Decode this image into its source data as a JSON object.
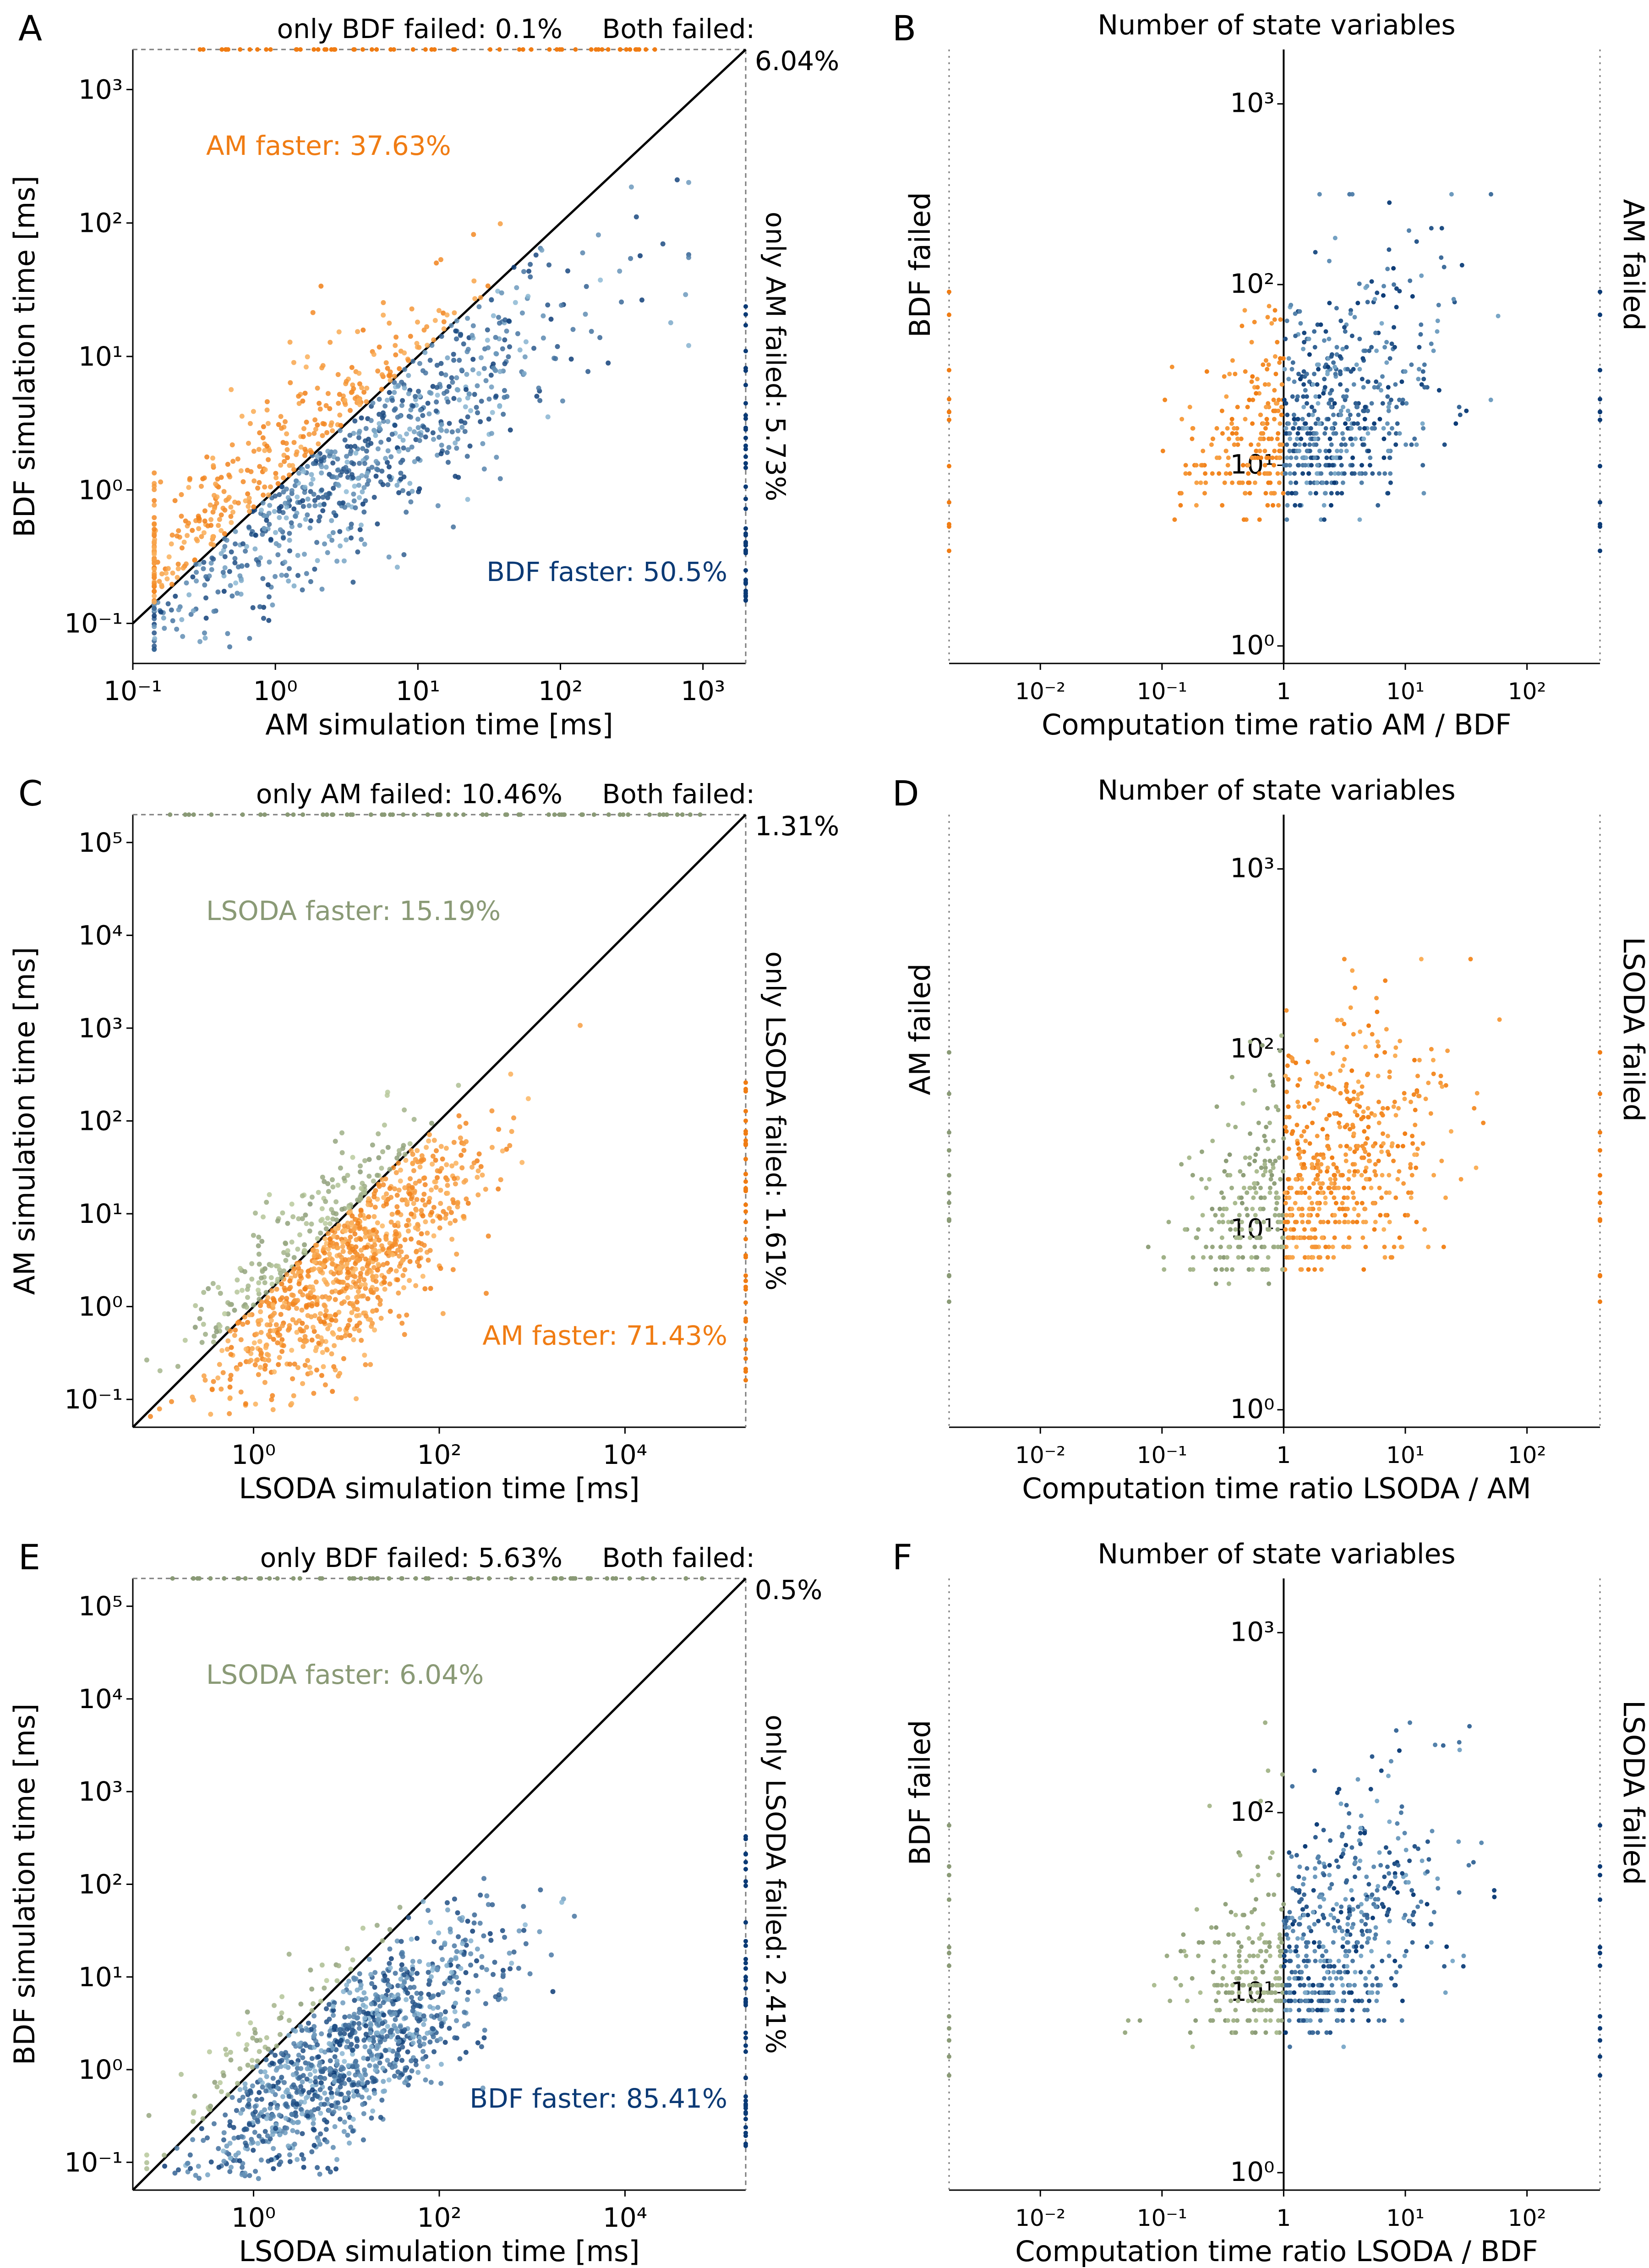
{
  "colors": {
    "am": "#f07c13",
    "am_light": "#fdbf6f",
    "bdf": "#0b3a75",
    "bdf_light": "#9ecae1",
    "lsoda": "#8a9a76",
    "lsoda_light": "#c7d8a8",
    "failed": "#7d7d7d"
  },
  "chart_data": [
    {
      "panel": "A",
      "type": "scatter",
      "xlabel": "AM simulation time [ms]",
      "ylabel": "BDF simulation time [ms]",
      "xscale": "log",
      "yscale": "log",
      "xlim": [
        0.05,
        2000
      ],
      "ylim": [
        0.05,
        2000
      ],
      "xticks": [
        "10⁻¹",
        "10⁰",
        "10¹",
        "10²",
        "10³"
      ],
      "yticks": [
        "10⁻¹",
        "10⁰",
        "10¹",
        "10²",
        "10³"
      ],
      "annotations": {
        "top": "only BDF failed: 0.1%",
        "both": [
          "Both failed:",
          "6.04%"
        ],
        "right": "only AM failed: 5.73%",
        "upper": "AM faster: 37.63%",
        "lower": "BDF faster: 50.5%"
      },
      "upper_color": "am",
      "lower_color": "bdf",
      "center": [
        0.0,
        0.0
      ],
      "spread": [
        0.75,
        0.4
      ],
      "slope": 0.72,
      "n_pts": 1100,
      "x_right_fail": 3.3
    },
    {
      "panel": "B",
      "type": "scatter",
      "title": "Number of state variables",
      "xlabel": "Computation time ratio AM / BDF",
      "left_label": "BDF failed",
      "right_label": "AM failed",
      "xscale": "log",
      "yscale": "log",
      "ylim": [
        0.8,
        2000
      ],
      "xticks": [
        "10⁻²",
        "10⁻¹",
        "1",
        "10¹",
        "10²"
      ],
      "yticks": [
        "10⁰",
        "10¹",
        "10²",
        "10³"
      ],
      "left_color": "am",
      "right_color": "bdf"
    },
    {
      "panel": "C",
      "type": "scatter",
      "xlabel": "LSODA simulation time [ms]",
      "ylabel": "AM simulation time [ms]",
      "xscale": "log",
      "yscale": "log",
      "xlim": [
        0.05,
        200000
      ],
      "ylim": [
        0.05,
        200000
      ],
      "xticks": [
        "10⁰",
        "10²",
        "10⁴"
      ],
      "yticks": [
        "10⁻¹",
        "10⁰",
        "10¹",
        "10²",
        "10³",
        "10⁴",
        "10⁵"
      ],
      "annotations": {
        "top": "only AM failed: 10.46%",
        "both": [
          "Both failed:",
          "1.31%"
        ],
        "right": "only LSODA failed: 1.61%",
        "upper": "LSODA faster: 15.19%",
        "lower": "AM faster: 71.43%"
      },
      "upper_color": "lsoda",
      "lower_color": "am",
      "center": [
        0.55,
        0.25
      ],
      "spread": [
        0.65,
        0.5
      ],
      "slope": 0.72,
      "n_pts": 1100,
      "x_right_fail": 5.3
    },
    {
      "panel": "D",
      "type": "scatter",
      "title": "Number of state variables",
      "xlabel": "Computation time ratio LSODA / AM",
      "left_label": "AM failed",
      "right_label": "LSODA failed",
      "xscale": "log",
      "yscale": "log",
      "ylim": [
        0.8,
        2000
      ],
      "xticks": [
        "10⁻²",
        "10⁻¹",
        "1",
        "10¹",
        "10²"
      ],
      "yticks": [
        "10⁰",
        "10¹",
        "10²",
        "10³"
      ],
      "left_color": "lsoda",
      "right_color": "am"
    },
    {
      "panel": "E",
      "type": "scatter",
      "xlabel": "LSODA simulation time [ms]",
      "ylabel": "BDF simulation time [ms]",
      "xscale": "log",
      "yscale": "log",
      "xlim": [
        0.05,
        200000
      ],
      "ylim": [
        0.05,
        200000
      ],
      "xticks": [
        "10⁰",
        "10²",
        "10⁴"
      ],
      "yticks": [
        "10⁻¹",
        "10⁰",
        "10¹",
        "10²",
        "10³",
        "10⁴",
        "10⁵"
      ],
      "annotations": {
        "top": "only BDF failed: 5.63%",
        "both": [
          "Both failed:",
          "0.5%"
        ],
        "right": "only LSODA failed: 2.41%",
        "upper": "LSODA faster: 6.04%",
        "lower": "BDF faster: 85.41%"
      },
      "upper_color": "lsoda",
      "lower_color": "bdf",
      "center": [
        0.6,
        0.0
      ],
      "spread": [
        0.75,
        0.45
      ],
      "slope": 0.65,
      "n_pts": 1200,
      "x_right_fail": 5.3
    },
    {
      "panel": "F",
      "type": "scatter",
      "title": "Number of state variables",
      "xlabel": "Computation time ratio LSODA / BDF",
      "left_label": "BDF failed",
      "right_label": "LSODA failed",
      "xscale": "log",
      "yscale": "log",
      "ylim": [
        0.8,
        2000
      ],
      "xticks": [
        "10⁻²",
        "10⁻¹",
        "1",
        "10¹",
        "10²"
      ],
      "yticks": [
        "10⁰",
        "10¹",
        "10²",
        "10³"
      ],
      "left_color": "lsoda",
      "right_color": "bdf"
    }
  ]
}
